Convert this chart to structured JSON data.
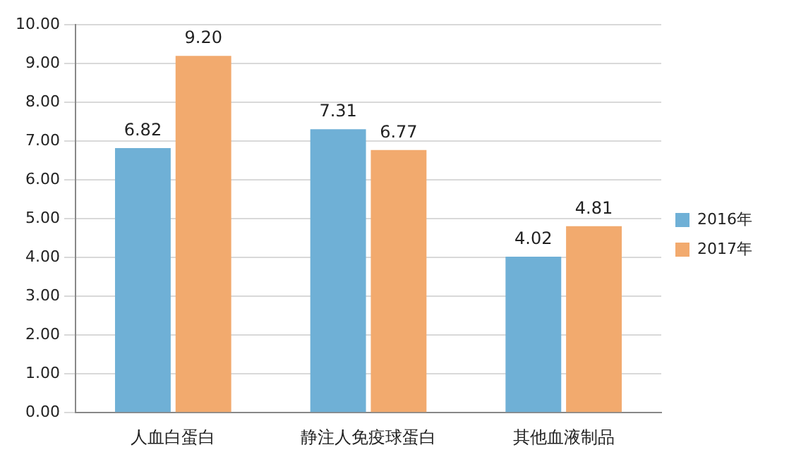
{
  "chart_data": {
    "type": "bar",
    "categories": [
      "人血白蛋白",
      "静注人免疫球蛋白",
      "其他血液制品"
    ],
    "series": [
      {
        "name": "2016年",
        "color": "#6fb0d6",
        "values": [
          6.82,
          7.31,
          4.02
        ],
        "value_labels": [
          "6.82",
          "7.31",
          "4.02"
        ]
      },
      {
        "name": "2017年",
        "color": "#f2aa6e",
        "values": [
          9.2,
          6.77,
          4.81
        ],
        "value_labels": [
          "9.20",
          "6.77",
          "4.81"
        ]
      }
    ],
    "ylim": [
      0,
      10
    ],
    "yticks": [
      {
        "value": 0,
        "label": "0.00"
      },
      {
        "value": 1,
        "label": "1.00"
      },
      {
        "value": 2,
        "label": "2.00"
      },
      {
        "value": 3,
        "label": "3.00"
      },
      {
        "value": 4,
        "label": "4.00"
      },
      {
        "value": 5,
        "label": "5.00"
      },
      {
        "value": 6,
        "label": "6.00"
      },
      {
        "value": 7,
        "label": "7.00"
      },
      {
        "value": 8,
        "label": "8.00"
      },
      {
        "value": 9,
        "label": "9.00"
      },
      {
        "value": 10,
        "label": "10.00"
      }
    ],
    "grid": "y",
    "legend": "right"
  }
}
